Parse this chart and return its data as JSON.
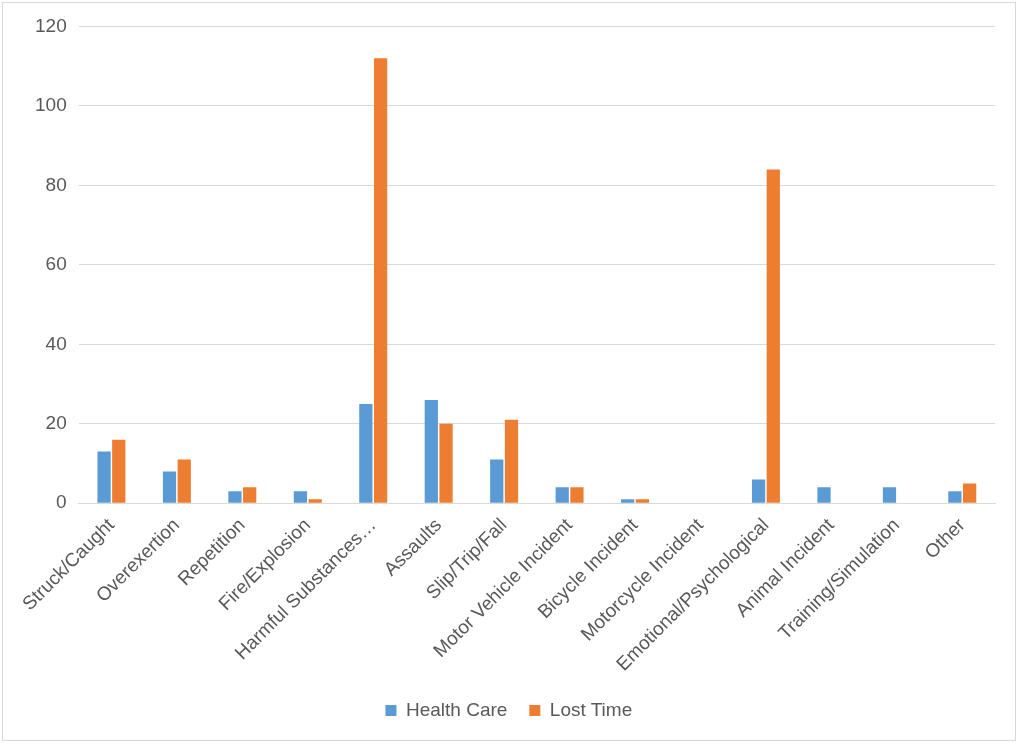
{
  "chart_data": {
    "type": "bar",
    "categories": [
      "Struck/Caught",
      "Overexertion",
      "Repetition",
      "Fire/Explosion",
      "Harmful Substances…",
      "Assaults",
      "Slip/Trip/Fall",
      "Motor Vehicle Incident",
      "Bicycle Incident",
      "Motorcycle Incident",
      "Emotional/Psychological",
      "Animal Incident",
      "Training/Simulation",
      "Other"
    ],
    "series": [
      {
        "name": "Health Care",
        "color": "#5b9bd5",
        "values": [
          13,
          8,
          3,
          3,
          25,
          26,
          11,
          4,
          1,
          0,
          6,
          4,
          4,
          3
        ]
      },
      {
        "name": "Lost Time",
        "color": "#ed7d31",
        "values": [
          16,
          11,
          4,
          1,
          112,
          20,
          21,
          4,
          1,
          0,
          84,
          0,
          0,
          5
        ]
      }
    ],
    "ylim": [
      0,
      120
    ],
    "yticks": [
      0,
      20,
      40,
      60,
      80,
      100,
      120
    ],
    "grid": "y",
    "legend": "bottom"
  }
}
